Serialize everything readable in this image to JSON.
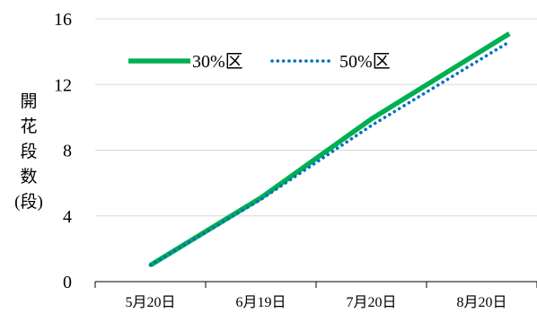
{
  "chart_data": {
    "type": "line",
    "title": "",
    "xlabel": "",
    "ylabel_chars": [
      "開",
      "花",
      "段",
      "数",
      "(段)"
    ],
    "categories": [
      "5月20日",
      "6月19日",
      "7月20日",
      "8月20日"
    ],
    "yticks": [
      "0",
      "4",
      "8",
      "12",
      "16"
    ],
    "ylim": [
      0,
      16
    ],
    "grid": true,
    "legend_position": "top-left",
    "series": [
      {
        "name": "30%区",
        "color": "#00b050",
        "style": "solid",
        "x": [
          0,
          1,
          2,
          3.25
        ],
        "values": [
          1.0,
          5.1,
          9.9,
          15.1
        ]
      },
      {
        "name": "50%区",
        "color": "#0070c0",
        "style": "dotted",
        "x": [
          0,
          1,
          2,
          3.25
        ],
        "values": [
          1.0,
          5.0,
          9.5,
          14.6
        ]
      }
    ]
  }
}
